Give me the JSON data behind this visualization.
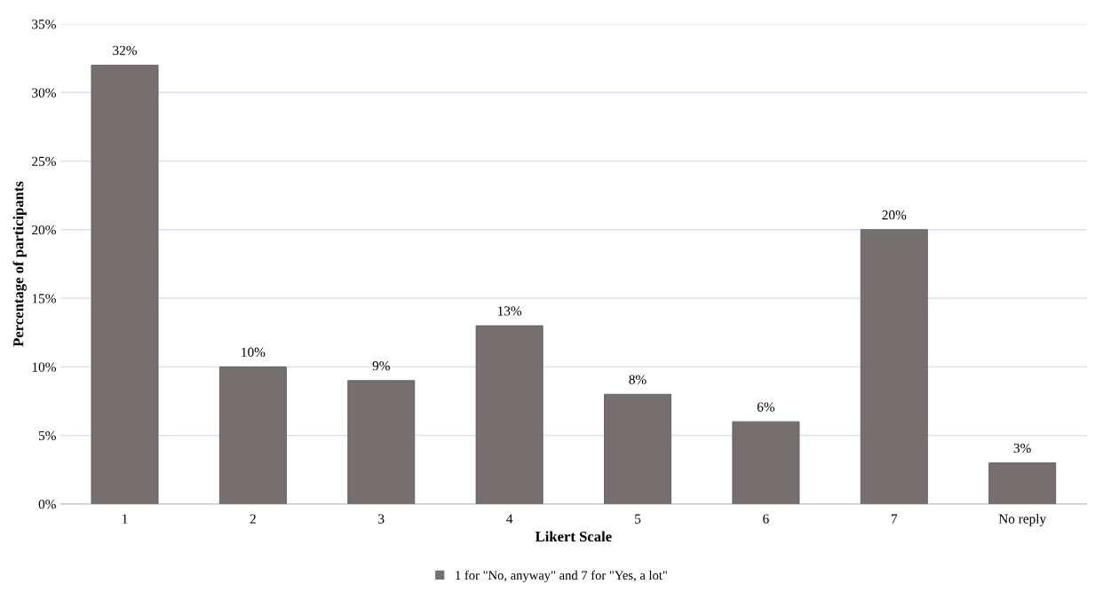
{
  "chart_data": {
    "type": "bar",
    "xlabel": "Likert Scale",
    "ylabel": "Percentage of participants",
    "categories": [
      "1",
      "2",
      "3",
      "4",
      "5",
      "6",
      "7",
      "No reply"
    ],
    "series": [
      {
        "name": "1 for \"No, anyway\" and 7 for \"Yes, a lot\"",
        "color": "#756f6e",
        "values": [
          32,
          10,
          9,
          13,
          8,
          6,
          20,
          3
        ],
        "value_labels": [
          "32%",
          "10%",
          "9%",
          "13%",
          "8%",
          "6%",
          "20%",
          "3%"
        ]
      }
    ],
    "ylim": [
      0,
      35
    ],
    "yticks": [
      {
        "value": 0,
        "label": "0%"
      },
      {
        "value": 5,
        "label": "5%"
      },
      {
        "value": 10,
        "label": "10%"
      },
      {
        "value": 15,
        "label": "15%"
      },
      {
        "value": 20,
        "label": "20%"
      },
      {
        "value": 25,
        "label": "25%"
      },
      {
        "value": 30,
        "label": "30%"
      },
      {
        "value": 35,
        "label": "35%"
      }
    ],
    "grid": "y",
    "legend": "bottom"
  }
}
